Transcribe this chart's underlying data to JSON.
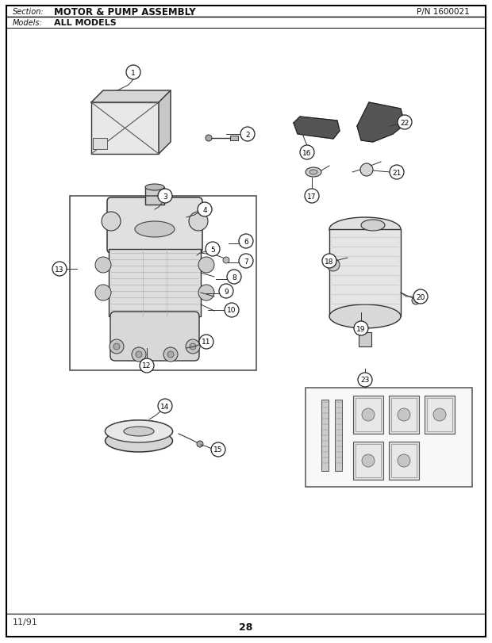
{
  "title_section": "Section:",
  "title_main": "MOTOR & PUMP ASSEMBLY",
  "title_pn": "P/N 1600021",
  "title_models": "Models:",
  "title_models_val": "ALL MODELS",
  "page_number": "28",
  "date": "11/91",
  "bg_color": "#ffffff"
}
